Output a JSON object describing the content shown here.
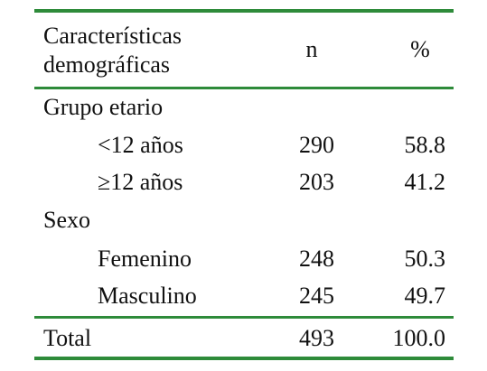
{
  "table": {
    "header": [
      "Características demográficas",
      "n",
      "%"
    ],
    "rows": [
      [
        "Grupo etario"
      ],
      [
        "≥12 años",
        "203",
        "41.2"
      ],
      [
        "Sexo"
      ],
      [
        "Femenino",
        "248",
        "50.3"
      ],
      [
        "Masculino",
        "245",
        "49.7"
      ]
    ],
    "first_row": [
      "<12 años",
      "290",
      "58.8"
    ],
    "total": [
      "Total",
      "493",
      "100.0"
    ]
  }
}
